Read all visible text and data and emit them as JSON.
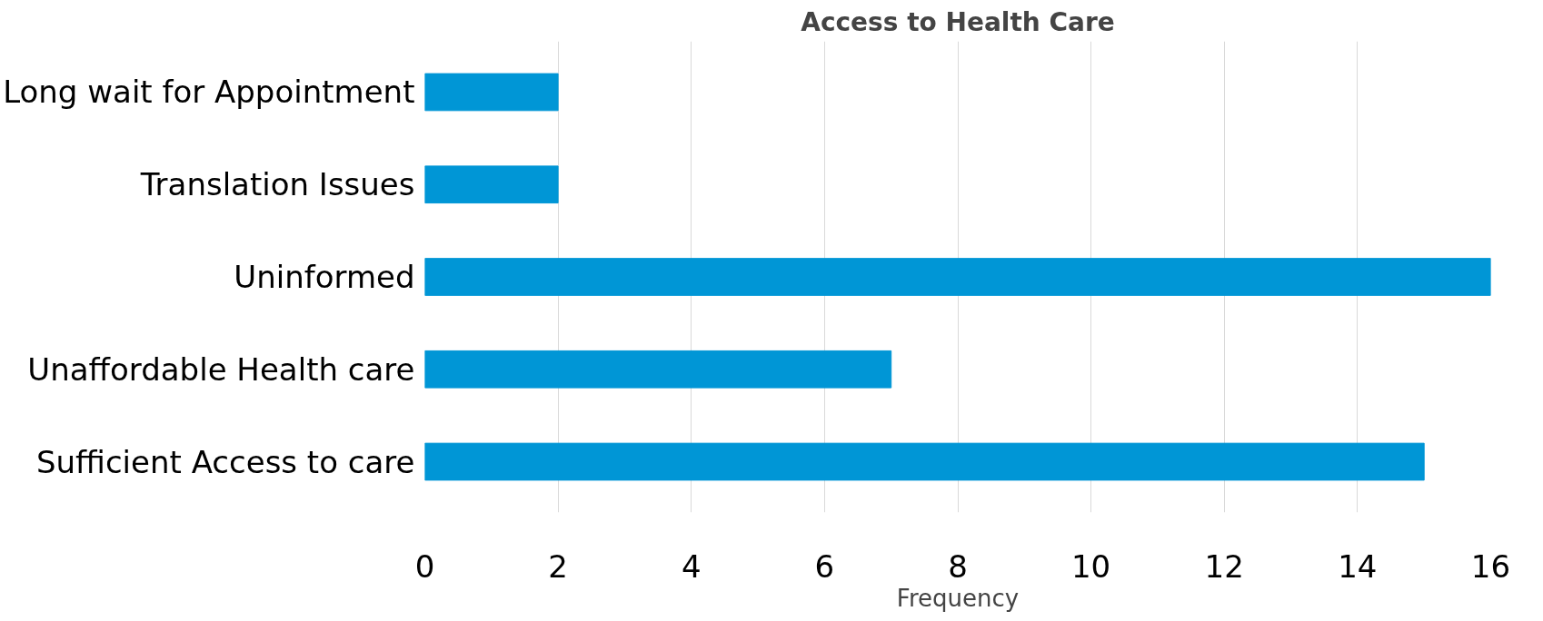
{
  "chart_data": {
    "type": "bar",
    "orientation": "horizontal",
    "title": "Access to Health Care",
    "xlabel": "Frequency",
    "categories": [
      "Long wait for Appointment",
      "Translation Issues",
      "Uninformed",
      "Unaffordable Health care",
      "Sufficient Access to care"
    ],
    "values": [
      2,
      2,
      16,
      7,
      15
    ],
    "color": "#0096d6",
    "xlim": [
      0,
      16
    ],
    "xticks": [
      0,
      2,
      4,
      6,
      8,
      10,
      12,
      14,
      16
    ],
    "grid": "x"
  }
}
